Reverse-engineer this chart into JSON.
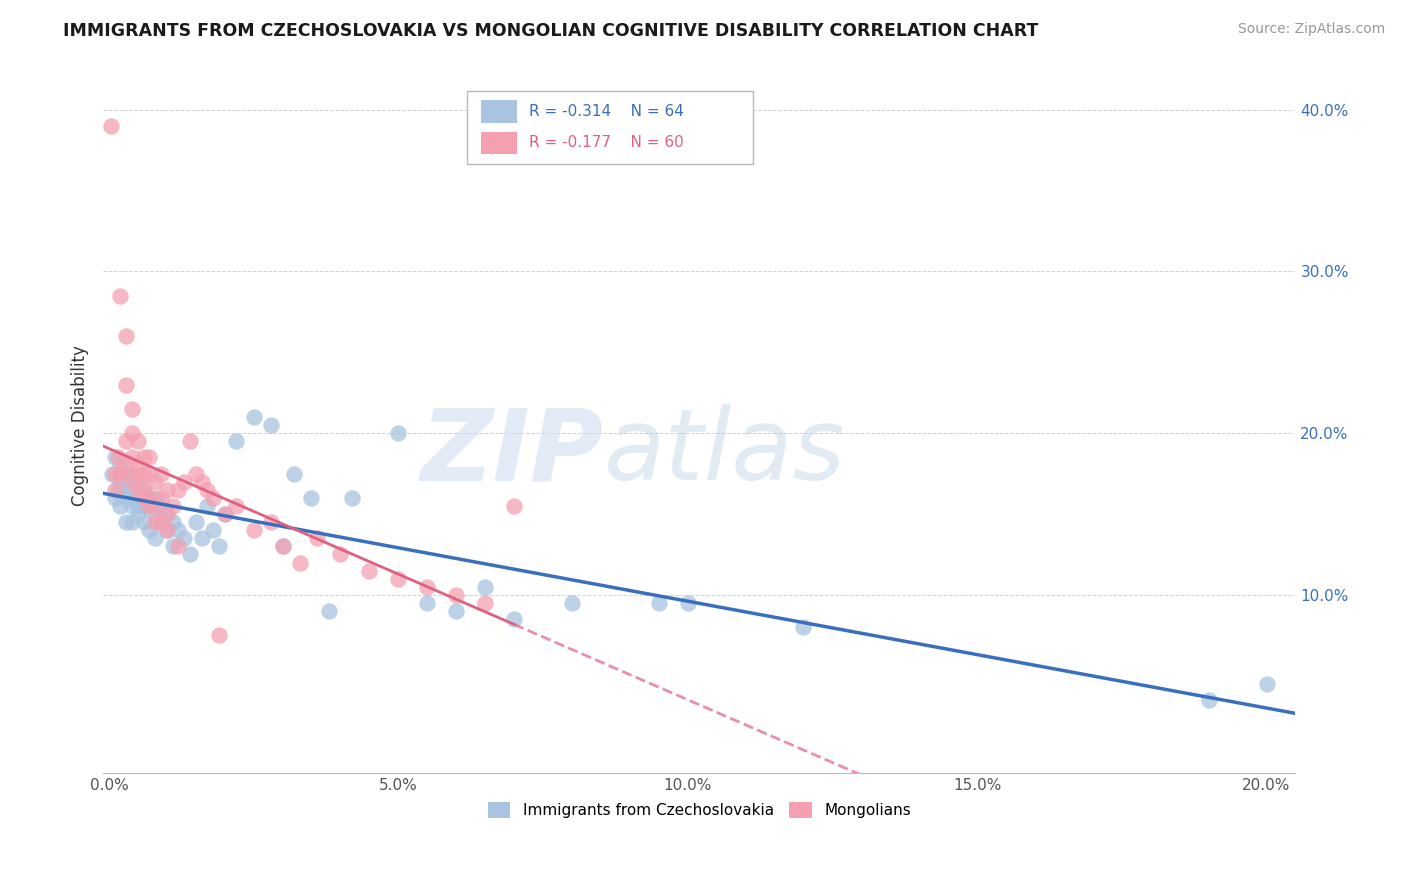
{
  "title": "IMMIGRANTS FROM CZECHOSLOVAKIA VS MONGOLIAN COGNITIVE DISABILITY CORRELATION CHART",
  "source": "Source: ZipAtlas.com",
  "ylabel": "Cognitive Disability",
  "legend_label1": "Immigrants from Czechoslovakia",
  "legend_label2": "Mongolians",
  "R1": -0.314,
  "N1": 64,
  "R2": -0.177,
  "N2": 60,
  "color1": "#a8c4e0",
  "color2": "#f4a0b0",
  "line_color1": "#3a6fbd",
  "line_color2": "#e06080",
  "xlim": [
    -0.001,
    0.205
  ],
  "ylim": [
    -0.01,
    0.42
  ],
  "xticks": [
    0.0,
    0.05,
    0.1,
    0.15,
    0.2
  ],
  "yticks": [
    0.1,
    0.2,
    0.3,
    0.4
  ],
  "watermark": "ZIPatlas",
  "blue_x": [
    0.0005,
    0.001,
    0.001,
    0.0015,
    0.002,
    0.002,
    0.002,
    0.0025,
    0.003,
    0.003,
    0.003,
    0.003,
    0.0035,
    0.004,
    0.004,
    0.004,
    0.004,
    0.005,
    0.005,
    0.005,
    0.005,
    0.006,
    0.006,
    0.006,
    0.007,
    0.007,
    0.007,
    0.008,
    0.008,
    0.008,
    0.009,
    0.009,
    0.01,
    0.01,
    0.011,
    0.011,
    0.012,
    0.013,
    0.014,
    0.015,
    0.016,
    0.017,
    0.018,
    0.019,
    0.02,
    0.022,
    0.025,
    0.028,
    0.03,
    0.032,
    0.035,
    0.038,
    0.042,
    0.05,
    0.055,
    0.06,
    0.065,
    0.07,
    0.08,
    0.095,
    0.1,
    0.12,
    0.19,
    0.2
  ],
  "blue_y": [
    0.175,
    0.185,
    0.16,
    0.165,
    0.17,
    0.18,
    0.155,
    0.175,
    0.165,
    0.175,
    0.145,
    0.16,
    0.175,
    0.165,
    0.155,
    0.145,
    0.16,
    0.155,
    0.17,
    0.15,
    0.16,
    0.165,
    0.155,
    0.145,
    0.16,
    0.14,
    0.155,
    0.15,
    0.16,
    0.135,
    0.155,
    0.145,
    0.15,
    0.14,
    0.145,
    0.13,
    0.14,
    0.135,
    0.125,
    0.145,
    0.135,
    0.155,
    0.14,
    0.13,
    0.15,
    0.195,
    0.21,
    0.205,
    0.13,
    0.175,
    0.16,
    0.09,
    0.16,
    0.2,
    0.095,
    0.09,
    0.105,
    0.085,
    0.095,
    0.095,
    0.095,
    0.08,
    0.035,
    0.045
  ],
  "pink_x": [
    0.0003,
    0.001,
    0.001,
    0.0015,
    0.002,
    0.002,
    0.003,
    0.003,
    0.003,
    0.004,
    0.004,
    0.004,
    0.005,
    0.005,
    0.005,
    0.006,
    0.006,
    0.006,
    0.007,
    0.007,
    0.007,
    0.008,
    0.008,
    0.009,
    0.009,
    0.01,
    0.01,
    0.011,
    0.012,
    0.013,
    0.014,
    0.015,
    0.016,
    0.017,
    0.018,
    0.019,
    0.02,
    0.022,
    0.025,
    0.028,
    0.03,
    0.033,
    0.036,
    0.04,
    0.045,
    0.05,
    0.055,
    0.06,
    0.065,
    0.07,
    0.002,
    0.003,
    0.004,
    0.005,
    0.006,
    0.007,
    0.008,
    0.009,
    0.01,
    0.012
  ],
  "pink_y": [
    0.39,
    0.175,
    0.165,
    0.185,
    0.285,
    0.175,
    0.26,
    0.23,
    0.195,
    0.215,
    0.2,
    0.185,
    0.18,
    0.195,
    0.175,
    0.185,
    0.175,
    0.165,
    0.175,
    0.16,
    0.185,
    0.17,
    0.155,
    0.16,
    0.175,
    0.165,
    0.15,
    0.155,
    0.165,
    0.17,
    0.195,
    0.175,
    0.17,
    0.165,
    0.16,
    0.075,
    0.15,
    0.155,
    0.14,
    0.145,
    0.13,
    0.12,
    0.135,
    0.125,
    0.115,
    0.11,
    0.105,
    0.1,
    0.095,
    0.155,
    0.175,
    0.18,
    0.17,
    0.165,
    0.16,
    0.155,
    0.145,
    0.145,
    0.14,
    0.13
  ]
}
